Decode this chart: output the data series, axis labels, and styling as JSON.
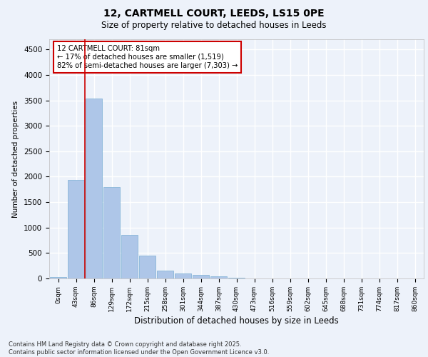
{
  "title_line1": "12, CARTMELL COURT, LEEDS, LS15 0PE",
  "title_line2": "Size of property relative to detached houses in Leeds",
  "xlabel": "Distribution of detached houses by size in Leeds",
  "ylabel": "Number of detached properties",
  "categories": [
    "0sqm",
    "43sqm",
    "86sqm",
    "129sqm",
    "172sqm",
    "215sqm",
    "258sqm",
    "301sqm",
    "344sqm",
    "387sqm",
    "430sqm",
    "473sqm",
    "516sqm",
    "559sqm",
    "602sqm",
    "645sqm",
    "688sqm",
    "731sqm",
    "774sqm",
    "817sqm",
    "860sqm"
  ],
  "values": [
    30,
    1940,
    3530,
    1800,
    860,
    455,
    160,
    105,
    65,
    45,
    15,
    5,
    2,
    1,
    0,
    0,
    0,
    0,
    0,
    0,
    0
  ],
  "bar_color": "#aec6e8",
  "bar_edge_color": "#7bafd4",
  "annotation_text_line1": "12 CARTMELL COURT: 81sqm",
  "annotation_text_line2": "← 17% of detached houses are smaller (1,519)",
  "annotation_text_line3": "82% of semi-detached houses are larger (7,303) →",
  "annotation_box_facecolor": "#ffffff",
  "annotation_box_edgecolor": "#cc0000",
  "red_line_x": 1.5,
  "ylim": [
    0,
    4700
  ],
  "yticks": [
    0,
    500,
    1000,
    1500,
    2000,
    2500,
    3000,
    3500,
    4000,
    4500
  ],
  "background_color": "#edf2fa",
  "grid_color": "#ffffff",
  "footer_line1": "Contains HM Land Registry data © Crown copyright and database right 2025.",
  "footer_line2": "Contains public sector information licensed under the Open Government Licence v3.0."
}
